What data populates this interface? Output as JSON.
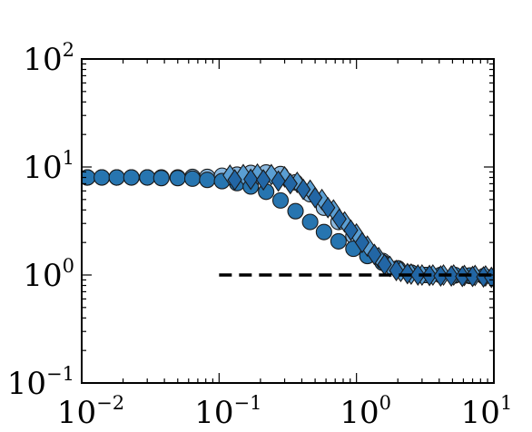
{
  "chart_data": {
    "type": "scatter",
    "title": "",
    "xlabel": "",
    "ylabel": "",
    "xscale": "log",
    "yscale": "log",
    "xlim": [
      0.01,
      10
    ],
    "ylim": [
      0.1,
      100
    ],
    "grid": false,
    "x_ticks": [
      {
        "value": 0.01,
        "base": "10",
        "exp": "−2"
      },
      {
        "value": 0.1,
        "base": "10",
        "exp": "−1"
      },
      {
        "value": 1,
        "base": "10",
        "exp": "0"
      },
      {
        "value": 10,
        "base": "10",
        "exp": "1"
      }
    ],
    "y_ticks": [
      {
        "value": 0.1,
        "base": "10",
        "exp": "−1"
      },
      {
        "value": 1,
        "base": "10",
        "exp": "0"
      },
      {
        "value": 10,
        "base": "10",
        "exp": "1"
      },
      {
        "value": 100,
        "base": "10",
        "exp": "2"
      }
    ],
    "reference_line": {
      "x": [
        0.1,
        10
      ],
      "y": [
        1,
        1
      ],
      "style": "dashed",
      "color": "#000000"
    },
    "series": [
      {
        "marker": "circle",
        "color": "#8ab8df",
        "x": [
          0.011,
          0.014,
          0.018,
          0.023,
          0.03,
          0.038,
          0.05,
          0.064,
          0.082,
          0.105,
          0.135,
          0.17,
          0.22,
          0.28,
          0.36,
          0.46,
          0.58,
          0.74,
          0.95,
          1.2,
          1.55,
          2.0,
          2.5,
          3.2,
          4.1,
          5.2,
          6.7,
          8.5
        ],
        "y": [
          8.0,
          8.0,
          8.0,
          8.0,
          8.0,
          8.0,
          8.0,
          8.1,
          8.1,
          8.3,
          8.5,
          8.8,
          8.9,
          8.6,
          7.2,
          5.6,
          4.2,
          3.1,
          2.3,
          1.7,
          1.35,
          1.15,
          1.05,
          1.0,
          1.0,
          0.99,
          0.98,
          0.97
        ]
      },
      {
        "marker": "circle",
        "color": "#2775b0",
        "x": [
          0.011,
          0.014,
          0.018,
          0.023,
          0.03,
          0.038,
          0.05,
          0.064,
          0.082,
          0.105,
          0.135,
          0.17,
          0.22,
          0.28,
          0.36,
          0.46,
          0.58,
          0.74,
          0.95,
          1.2,
          1.55,
          2.0,
          2.5,
          3.2,
          4.1,
          5.2,
          6.7,
          8.5
        ],
        "y": [
          8.0,
          8.0,
          8.0,
          8.0,
          8.0,
          7.9,
          7.9,
          7.8,
          7.6,
          7.4,
          7.1,
          6.6,
          5.9,
          4.9,
          3.9,
          3.1,
          2.5,
          2.05,
          1.75,
          1.5,
          1.3,
          1.15,
          1.05,
          1.0,
          1.0,
          1.0,
          0.99,
          0.98
        ]
      },
      {
        "marker": "diamond",
        "color": "#5a9ed3",
        "x": [
          0.12,
          0.15,
          0.19,
          0.24,
          0.3,
          0.37,
          0.46,
          0.56,
          0.68,
          0.82,
          1.0,
          1.2,
          1.45,
          1.75,
          2.1,
          2.5,
          3.0,
          3.6,
          4.3,
          5.1,
          6.1,
          7.3,
          8.7
        ],
        "y": [
          8.4,
          8.5,
          8.6,
          8.5,
          8.1,
          7.2,
          6.1,
          5.0,
          4.0,
          3.1,
          2.4,
          1.85,
          1.45,
          1.2,
          1.08,
          1.02,
          1.0,
          1.0,
          1.0,
          1.0,
          0.99,
          0.99,
          0.98
        ]
      },
      {
        "marker": "diamond",
        "color": "#2266a5",
        "x": [
          0.13,
          0.17,
          0.21,
          0.27,
          0.33,
          0.41,
          0.5,
          0.62,
          0.75,
          0.91,
          1.1,
          1.35,
          1.6,
          1.95,
          2.35,
          2.8,
          3.4,
          4.1,
          4.9,
          5.9,
          7.0,
          8.4,
          9.6
        ],
        "y": [
          7.6,
          7.7,
          7.6,
          7.4,
          7.0,
          6.2,
          5.2,
          4.2,
          3.3,
          2.6,
          2.0,
          1.55,
          1.25,
          1.1,
          1.03,
          1.0,
          0.99,
          0.98,
          0.98,
          0.97,
          0.97,
          0.96,
          0.95
        ]
      }
    ]
  }
}
